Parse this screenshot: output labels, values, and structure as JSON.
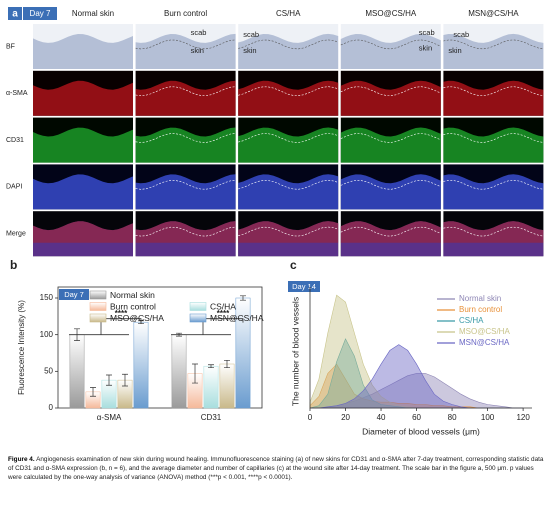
{
  "panel_a": {
    "letter": "a",
    "day": "Day 7",
    "columns": [
      "Normal skin",
      "Burn control",
      "CS/HA",
      "MSO@CS/HA",
      "MSN@CS/HA"
    ],
    "rows": [
      "BF",
      "α-SMA",
      "CD31",
      "DAPI",
      "Merge"
    ],
    "bf_labels": [
      [
        "scab",
        "skin"
      ],
      [
        "scab",
        "skin"
      ],
      [
        "scab",
        "skin"
      ],
      [
        "scab",
        "skin"
      ]
    ]
  },
  "chart_data": [
    {
      "type": "bar",
      "letter": "b",
      "badge": "Day 7",
      "y_label": "Fluorescence Intensity (%)",
      "categories": [
        "α-SMA",
        "CD31"
      ],
      "series": [
        {
          "name": "Normal skin",
          "color": "#9a9a9a",
          "values": [
            100,
            100
          ],
          "errors": [
            8,
            2
          ]
        },
        {
          "name": "Burn control",
          "color": "#f5b99a",
          "values": [
            22,
            47
          ],
          "errors": [
            6,
            13
          ]
        },
        {
          "name": "CS/HA",
          "color": "#a8dede",
          "values": [
            38,
            57
          ],
          "errors": [
            7,
            2
          ]
        },
        {
          "name": "MSO@CS/HA",
          "color": "#c9b98a",
          "values": [
            38,
            60
          ],
          "errors": [
            8,
            5
          ]
        },
        {
          "name": "MSN@CS/HA",
          "color": "#6a9ccf",
          "values": [
            117,
            150
          ],
          "errors": [
            2,
            3
          ]
        }
      ],
      "significance": [
        "****",
        "****"
      ],
      "ylim": [
        0,
        165
      ],
      "yticks": [
        0,
        50,
        100,
        150
      ]
    },
    {
      "type": "area",
      "letter": "c",
      "badge": "Day 14",
      "x_label": "Diameter of blood vessels (μm)",
      "y_label": "The number of blood vessels",
      "x": [
        0,
        5,
        10,
        15,
        20,
        25,
        30,
        35,
        40,
        45,
        50,
        55,
        60,
        65,
        70,
        75,
        80,
        85,
        90,
        95,
        100,
        105,
        110,
        115,
        120
      ],
      "series": [
        {
          "name": "Normal skin",
          "color": "#8e86b5",
          "values": [
            0,
            0,
            1,
            2,
            4,
            6,
            9,
            12,
            16,
            20,
            24,
            28,
            30,
            30,
            27,
            22,
            17,
            12,
            8,
            5,
            3,
            2,
            1,
            0,
            0
          ]
        },
        {
          "name": "Burn control",
          "color": "#e8913a",
          "values": [
            2,
            10,
            30,
            38,
            25,
            12,
            8,
            6,
            5,
            5,
            4,
            4,
            3,
            3,
            2,
            2,
            1,
            1,
            1,
            0,
            0,
            0,
            0,
            0,
            0
          ]
        },
        {
          "name": "CS/HA",
          "color": "#3a9aa8",
          "values": [
            0,
            2,
            12,
            40,
            60,
            45,
            20,
            7,
            3,
            2,
            1,
            0,
            0,
            0,
            0,
            0,
            0,
            0,
            0,
            0,
            0,
            0,
            0,
            0,
            0
          ]
        },
        {
          "name": "MSO@CS/HA",
          "color": "#c8c48a",
          "values": [
            5,
            25,
            65,
            98,
            92,
            65,
            38,
            20,
            10,
            5,
            2,
            1,
            0,
            0,
            0,
            0,
            0,
            0,
            0,
            0,
            0,
            0,
            0,
            0,
            0
          ]
        },
        {
          "name": "MSN@CS/HA",
          "color": "#6a67c4",
          "values": [
            0,
            0,
            1,
            2,
            4,
            8,
            15,
            25,
            38,
            50,
            55,
            50,
            38,
            24,
            12,
            6,
            3,
            1,
            0,
            0,
            0,
            0,
            0,
            0,
            0
          ]
        }
      ],
      "xlim": [
        0,
        125
      ],
      "xticks": [
        0,
        20,
        40,
        60,
        80,
        100,
        120
      ],
      "ylim": [
        0,
        105
      ]
    }
  ],
  "caption": {
    "label": "Figure 4.",
    "text": "Angiogenesis examination of new skin during wound healing. Immunofluorescence staining (a) of new skins for CD31 and α-SMA after 7-day treatment, corresponding statistic data of CD31 and α-SMA expression (b, n = 6), and the average diameter and number of capillaries (c) at the wound site after 14-day treatment. The scale bar in the figure a, 500 μm. p values were calculated by the one-way analysis of variance (ANOVA) method (***p < 0.001, ****p < 0.0001)."
  }
}
